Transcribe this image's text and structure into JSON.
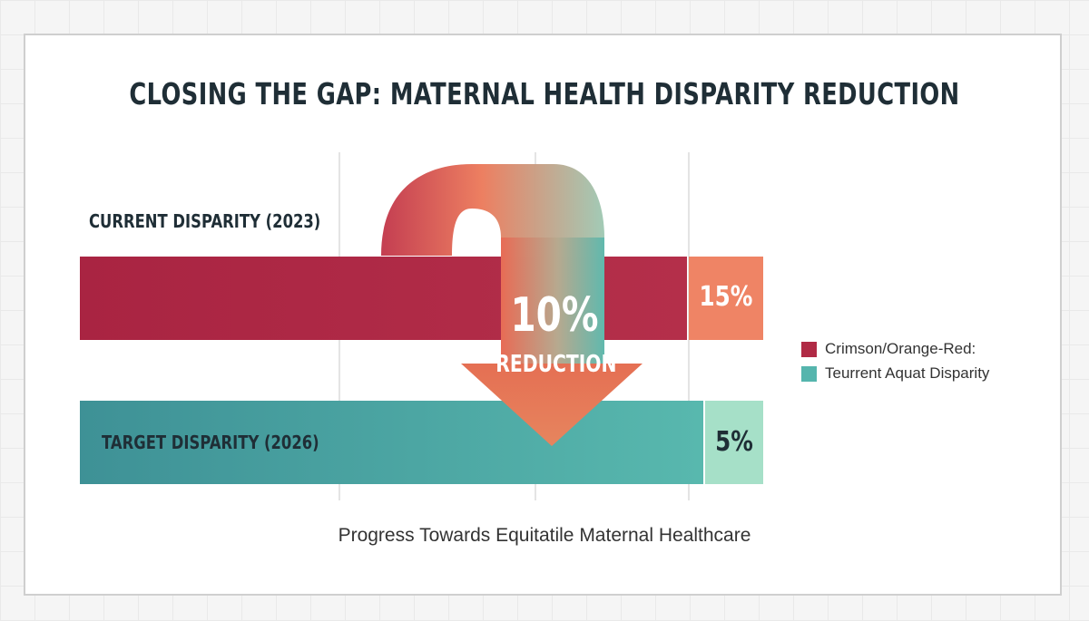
{
  "title": "CLOSING THE GAP: MATERNAL HEALTH DISPARITY REDUCTION",
  "caption": "Progress Towards Equitatile Maternal Healthcare",
  "legend": [
    {
      "label": "Crimson/Orange-Red:",
      "color": "#b02a45"
    },
    {
      "label": "Teurrent Aquat Disparity",
      "color": "#55b5ad"
    }
  ],
  "chart_data": {
    "type": "bar",
    "categories": [
      "CURRENT DISPARITY (2023)",
      "TARGET DISPARITY (2026)"
    ],
    "values": [
      15,
      5
    ],
    "value_labels": [
      "15%",
      "5%"
    ],
    "annotation": {
      "value": "10%",
      "label": "REDUCTION"
    },
    "colors": {
      "current_bar": "#ad2745",
      "current_label_bg": "#ef8465",
      "target_bar": "#4aa9a4",
      "target_label_bg": "#a6e0c8"
    }
  }
}
